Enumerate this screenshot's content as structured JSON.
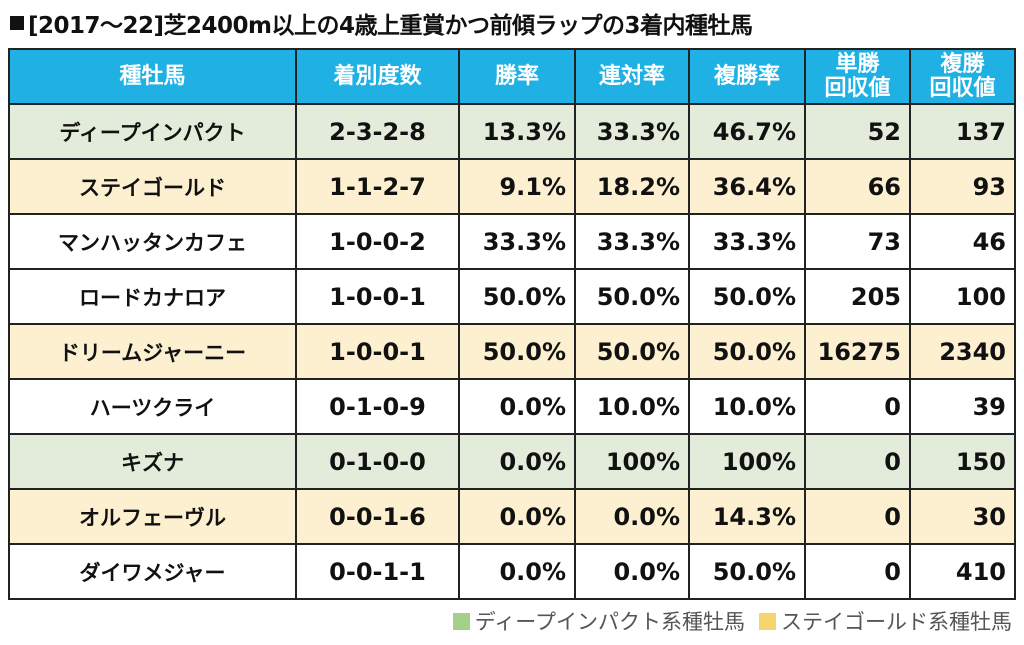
{
  "title": "[2017～22]芝2400m以上の4歳上重賞かつ前傾ラップの3着内種牡馬",
  "colors": {
    "header": "#1fb0e4",
    "deep_row": "#e3ecda",
    "stay_row": "#fdf0d0",
    "deep_legend": "#a6cf8a",
    "stay_legend": "#f6d66b"
  },
  "headers": {
    "sire": "種牡馬",
    "record": "着別度数",
    "win_rate": "勝率",
    "quinella_rate": "連対率",
    "place_rate": "複勝率",
    "win_return_1": "単勝",
    "win_return_2": "回収値",
    "place_return_1": "複勝",
    "place_return_2": "回収値"
  },
  "rows": [
    {
      "sire": "ディープインパクト",
      "record": "2-3-2-8",
      "win_rate": "13.3%",
      "quinella_rate": "33.3%",
      "place_rate": "46.7%",
      "win_return": "52",
      "place_return": "137",
      "group": "deep"
    },
    {
      "sire": "ステイゴールド",
      "record": "1-1-2-7",
      "win_rate": "9.1%",
      "quinella_rate": "18.2%",
      "place_rate": "36.4%",
      "win_return": "66",
      "place_return": "93",
      "group": "stay"
    },
    {
      "sire": "マンハッタンカフェ",
      "record": "1-0-0-2",
      "win_rate": "33.3%",
      "quinella_rate": "33.3%",
      "place_rate": "33.3%",
      "win_return": "73",
      "place_return": "46",
      "group": "plain"
    },
    {
      "sire": "ロードカナロア",
      "record": "1-0-0-1",
      "win_rate": "50.0%",
      "quinella_rate": "50.0%",
      "place_rate": "50.0%",
      "win_return": "205",
      "place_return": "100",
      "group": "plain"
    },
    {
      "sire": "ドリームジャーニー",
      "record": "1-0-0-1",
      "win_rate": "50.0%",
      "quinella_rate": "50.0%",
      "place_rate": "50.0%",
      "win_return": "16275",
      "place_return": "2340",
      "group": "stay"
    },
    {
      "sire": "ハーツクライ",
      "record": "0-1-0-9",
      "win_rate": "0.0%",
      "quinella_rate": "10.0%",
      "place_rate": "10.0%",
      "win_return": "0",
      "place_return": "39",
      "group": "plain"
    },
    {
      "sire": "キズナ",
      "record": "0-1-0-0",
      "win_rate": "0.0%",
      "quinella_rate": "100%",
      "place_rate": "100%",
      "win_return": "0",
      "place_return": "150",
      "group": "deep"
    },
    {
      "sire": "オルフェーヴル",
      "record": "0-0-1-6",
      "win_rate": "0.0%",
      "quinella_rate": "0.0%",
      "place_rate": "14.3%",
      "win_return": "0",
      "place_return": "30",
      "group": "stay"
    },
    {
      "sire": "ダイワメジャー",
      "record": "0-0-1-1",
      "win_rate": "0.0%",
      "quinella_rate": "0.0%",
      "place_rate": "50.0%",
      "win_return": "0",
      "place_return": "410",
      "group": "plain"
    }
  ],
  "legend": {
    "deep": "ディープインパクト系種牡馬",
    "stay": "ステイゴールド系種牡馬"
  }
}
